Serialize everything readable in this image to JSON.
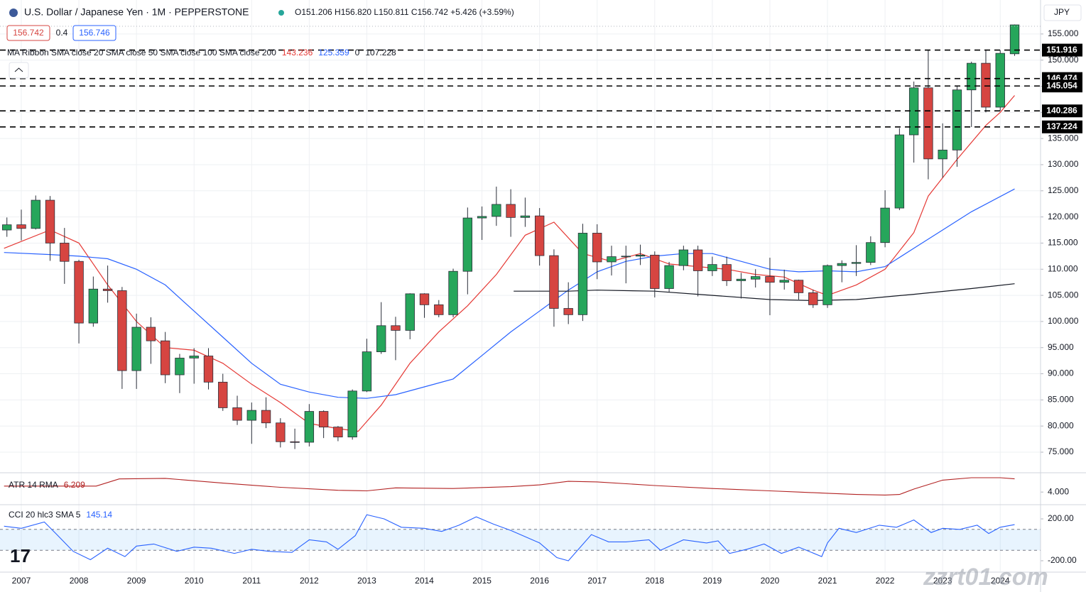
{
  "header": {
    "symbol": "U.S. Dollar / Japanese Yen · 1M · PEPPERSTONE",
    "ohlc": "O151.206 H156.820 L150.811 C156.742 +5.426 (+3.59%)",
    "bid": "156.742",
    "spread": "0.4",
    "ask": "156.746",
    "currency": "JPY",
    "watermark": "zzrt01.com"
  },
  "chart_data": [
    {
      "type": "candlestick",
      "legend": "MA Ribbon SMA close 20 SMA close 50 SMA close 100 SMA close 200",
      "legend_values": [
        {
          "text": "143.236",
          "color": "#e53935"
        },
        {
          "text": "125.359",
          "color": "#2962ff"
        },
        {
          "text": "0",
          "color": "#131722"
        },
        {
          "text": "107.228",
          "color": "#131722"
        }
      ],
      "up_color": "#26a65b",
      "down_color": "#d64541",
      "xlim": [
        2006.63,
        2024.7
      ],
      "ylim": [
        71.2,
        161.5
      ],
      "xticks": [
        2007,
        2008,
        2009,
        2010,
        2011,
        2012,
        2013,
        2014,
        2015,
        2016,
        2017,
        2018,
        2019,
        2020,
        2021,
        2022,
        2023,
        2024
      ],
      "yticks": [
        {
          "value": 75,
          "label": "75.000"
        },
        {
          "value": 80,
          "label": "80.000"
        },
        {
          "value": 85,
          "label": "85.000"
        },
        {
          "value": 90,
          "label": "90.000"
        },
        {
          "value": 95,
          "label": "95.000"
        },
        {
          "value": 100,
          "label": "100.000"
        },
        {
          "value": 105,
          "label": "105.000"
        },
        {
          "value": 110,
          "label": "110.000"
        },
        {
          "value": 115,
          "label": "115.000"
        },
        {
          "value": 120,
          "label": "120.000"
        },
        {
          "value": 125,
          "label": "125.000"
        },
        {
          "value": 130,
          "label": "130.000"
        },
        {
          "value": 135,
          "label": "135.000"
        },
        {
          "value": 140,
          "label": "140.000"
        },
        {
          "value": 145,
          "label": "145.000"
        },
        {
          "value": 150,
          "label": "150.000"
        },
        {
          "value": 155,
          "label": "155.000"
        }
      ],
      "grid": true,
      "x": [
        2006.75,
        2007.0,
        2007.25,
        2007.5,
        2007.75,
        2008.0,
        2008.25,
        2008.5,
        2008.75,
        2009.0,
        2009.25,
        2009.5,
        2009.75,
        2010.0,
        2010.25,
        2010.5,
        2010.75,
        2011.0,
        2011.25,
        2011.5,
        2011.75,
        2012.0,
        2012.25,
        2012.5,
        2012.75,
        2013.0,
        2013.25,
        2013.5,
        2013.75,
        2014.0,
        2014.25,
        2014.5,
        2014.75,
        2015.0,
        2015.25,
        2015.5,
        2015.75,
        2016.0,
        2016.25,
        2016.5,
        2016.75,
        2017.0,
        2017.25,
        2017.5,
        2017.75,
        2018.0,
        2018.25,
        2018.5,
        2018.75,
        2019.0,
        2019.25,
        2019.5,
        2019.75,
        2020.0,
        2020.25,
        2020.5,
        2020.75,
        2021.0,
        2021.25,
        2021.5,
        2021.75,
        2022.0,
        2022.25,
        2022.5,
        2022.75,
        2023.0,
        2023.25,
        2023.5,
        2023.75,
        2024.0,
        2024.25
      ],
      "open": [
        117.5,
        118.5,
        117.8,
        123.2,
        115.0,
        111.5,
        99.7,
        106.2,
        105.9,
        90.6,
        98.9,
        96.3,
        89.8,
        93.0,
        93.4,
        88.4,
        83.5,
        81.1,
        83.0,
        80.6,
        77.0,
        76.9,
        82.8,
        79.8,
        77.9,
        86.7,
        94.2,
        99.2,
        98.3,
        105.3,
        103.2,
        101.3,
        109.6,
        119.8,
        120.1,
        122.4,
        119.9,
        120.2,
        112.6,
        102.5,
        101.3,
        116.9,
        111.4,
        112.4,
        112.5,
        112.7,
        106.3,
        110.7,
        113.7,
        109.7,
        110.9,
        107.8,
        108.1,
        108.6,
        107.5,
        107.9,
        105.5,
        103.2,
        110.7,
        111.1,
        111.3,
        115.1,
        121.7,
        135.7,
        144.7,
        131.1,
        132.8,
        144.3,
        149.4,
        141.0,
        151.206
      ],
      "high": [
        119.9,
        121.4,
        124.1,
        124.0,
        117.9,
        111.8,
        108.6,
        110.7,
        106.6,
        101.5,
        100.8,
        98.0,
        93.8,
        94.9,
        94.9,
        90.0,
        85.8,
        84.5,
        85.5,
        81.5,
        79.5,
        84.2,
        83.0,
        80.0,
        87.0,
        96.7,
        103.7,
        100.9,
        105.4,
        105.4,
        104.1,
        110.1,
        121.8,
        122.0,
        125.8,
        125.3,
        123.7,
        121.7,
        113.8,
        107.5,
        118.7,
        118.6,
        114.5,
        114.5,
        114.7,
        113.4,
        111.4,
        114.5,
        114.5,
        112.4,
        112.4,
        109.3,
        110.0,
        112.2,
        109.9,
        108.0,
        106.1,
        110.9,
        111.7,
        114.6,
        116.3,
        125.1,
        137.0,
        145.9,
        151.9,
        137.9,
        145.1,
        149.7,
        151.9,
        151.9,
        156.82
      ],
      "low": [
        116.2,
        115.5,
        117.6,
        111.6,
        107.2,
        95.8,
        99.0,
        103.6,
        87.1,
        87.1,
        91.9,
        88.2,
        86.3,
        88.1,
        87.0,
        82.9,
        80.2,
        76.6,
        79.6,
        75.9,
        75.6,
        76.1,
        77.7,
        77.1,
        77.4,
        86.5,
        93.8,
        92.6,
        96.6,
        100.7,
        100.8,
        100.8,
        105.2,
        115.6,
        118.3,
        116.2,
        118.1,
        110.7,
        99.0,
        99.5,
        100.1,
        108.1,
        108.8,
        107.3,
        110.8,
        104.6,
        105.6,
        109.8,
        104.8,
        108.7,
        106.8,
        104.4,
        106.5,
        101.2,
        106.1,
        104.2,
        102.6,
        102.6,
        107.5,
        108.7,
        110.8,
        114.2,
        121.3,
        130.4,
        127.2,
        127.5,
        129.6,
        137.2,
        140.0,
        140.3,
        150.811
      ],
      "close": [
        118.5,
        117.8,
        123.2,
        115.0,
        111.5,
        99.7,
        106.2,
        105.9,
        90.6,
        98.9,
        96.3,
        89.8,
        93.0,
        93.4,
        88.4,
        83.5,
        81.1,
        83.0,
        80.6,
        77.0,
        76.9,
        82.8,
        79.8,
        77.9,
        86.7,
        94.2,
        99.2,
        98.3,
        105.3,
        103.2,
        101.3,
        109.6,
        119.8,
        120.1,
        122.4,
        119.9,
        120.2,
        112.6,
        102.5,
        101.3,
        116.9,
        111.4,
        112.4,
        112.5,
        112.7,
        106.3,
        110.7,
        113.7,
        109.7,
        110.9,
        107.8,
        108.1,
        108.6,
        107.5,
        107.9,
        105.5,
        103.2,
        110.7,
        111.1,
        111.3,
        115.1,
        121.7,
        135.7,
        144.7,
        131.1,
        132.8,
        144.3,
        149.4,
        141.0,
        151.3,
        156.742
      ],
      "lines": [
        {
          "color": "#e53935",
          "x": [
            2006.7,
            2007.5,
            2008.0,
            2008.5,
            2009.0,
            2009.5,
            2010.0,
            2010.5,
            2011.0,
            2011.5,
            2012.0,
            2012.5,
            2012.85,
            2013.25,
            2013.75,
            2014.25,
            2014.75,
            2015.25,
            2015.75,
            2016.25,
            2016.75,
            2017.25,
            2017.75,
            2018.25,
            2018.75,
            2019.25,
            2019.75,
            2020.25,
            2020.75,
            2021.0,
            2021.5,
            2022.0,
            2022.5,
            2022.75,
            2023.25,
            2023.75,
            2024.0,
            2024.25
          ],
          "values": [
            114,
            117.5,
            115,
            107,
            100,
            95,
            94.5,
            92,
            88,
            84.5,
            80.5,
            79.5,
            79,
            84,
            92,
            98,
            103,
            109,
            116.5,
            119,
            113,
            111.5,
            113,
            111,
            110.5,
            110,
            109,
            108.5,
            106,
            105,
            107,
            110,
            117,
            124,
            131,
            137.5,
            140,
            143.236
          ]
        },
        {
          "color": "#2962ff",
          "x": [
            2006.7,
            2007.5,
            2008.0,
            2008.5,
            2009.0,
            2009.5,
            2010.0,
            2010.5,
            2011.0,
            2011.5,
            2012.0,
            2012.5,
            2013.0,
            2013.5,
            2014.0,
            2014.5,
            2015.0,
            2015.5,
            2016.0,
            2016.5,
            2017.0,
            2017.5,
            2018.0,
            2018.5,
            2019.0,
            2019.5,
            2020.0,
            2020.5,
            2021.0,
            2021.5,
            2022.0,
            2022.5,
            2023.0,
            2023.5,
            2024.25
          ],
          "values": [
            113.2,
            112.8,
            112.5,
            112,
            110,
            107,
            102,
            97,
            92,
            88,
            86.5,
            85.5,
            85.3,
            86,
            87.5,
            89,
            93.5,
            98,
            102,
            106,
            109.5,
            111.5,
            112.5,
            113,
            113,
            111.5,
            110,
            109.5,
            109.7,
            109.5,
            110.5,
            114,
            117.5,
            121,
            125.359
          ]
        },
        {
          "color": "#131722",
          "x": [
            2015.55,
            2016.5,
            2017.0,
            2018.0,
            2019.0,
            2020.0,
            2020.75,
            2021.5,
            2022.5,
            2023.5,
            2024.25
          ],
          "values": [
            105.8,
            105.8,
            106,
            105.8,
            105,
            104.2,
            104,
            104.2,
            105.2,
            106.3,
            107.228
          ]
        }
      ],
      "levels": [
        {
          "value": 151.916,
          "label": "151.916"
        },
        {
          "value": 146.474,
          "label": "146.474"
        },
        {
          "value": 145.054,
          "label": "145.054"
        },
        {
          "value": 140.286,
          "label": "140.286"
        },
        {
          "value": 137.224,
          "label": "137.224"
        }
      ]
    },
    {
      "type": "line",
      "title": "ATR 14 RMA",
      "value_label": "6.209",
      "color": "#b22222",
      "xlim": [
        2006.63,
        2024.7
      ],
      "ylim": [
        2.0,
        7.0
      ],
      "yticks": [
        {
          "value": 4,
          "label": "4.000"
        }
      ],
      "x": [
        2006.7,
        2008.3,
        2008.7,
        2009.5,
        2010.5,
        2011.5,
        2012.5,
        2013.0,
        2013.5,
        2014.5,
        2015.5,
        2016.0,
        2016.5,
        2017.0,
        2018.0,
        2019.0,
        2019.5,
        2020.0,
        2020.5,
        2021.0,
        2021.5,
        2022.0,
        2022.25,
        2022.5,
        2023.0,
        2023.5,
        2024.0,
        2024.25
      ],
      "values": [
        5.0,
        5.0,
        6.2,
        6.3,
        5.5,
        4.8,
        4.3,
        4.2,
        4.7,
        4.6,
        4.9,
        5.2,
        5.8,
        5.7,
        5.1,
        4.6,
        4.4,
        4.2,
        4.0,
        3.8,
        3.6,
        3.5,
        3.6,
        4.5,
        6.0,
        6.4,
        6.4,
        6.209
      ]
    },
    {
      "type": "line",
      "title": "CCI 20 hlc3 SMA 5",
      "value_label": "145.14",
      "color": "#2962ff",
      "xlim": [
        2006.63,
        2024.7
      ],
      "ylim": [
        -302,
        329
      ],
      "yticks": [
        {
          "value": 200,
          "label": "200.00"
        },
        {
          "value": -200,
          "label": "-200.00"
        }
      ],
      "band": [
        -100,
        100
      ],
      "x": [
        2006.7,
        2007.0,
        2007.4,
        2007.6,
        2007.9,
        2008.2,
        2008.5,
        2008.8,
        2009.0,
        2009.3,
        2009.7,
        2010.0,
        2010.3,
        2010.7,
        2011.0,
        2011.3,
        2011.7,
        2012.0,
        2012.3,
        2012.5,
        2012.8,
        2013.0,
        2013.3,
        2013.6,
        2014.0,
        2014.3,
        2014.6,
        2014.9,
        2015.2,
        2015.5,
        2016.0,
        2016.3,
        2016.5,
        2016.9,
        2017.2,
        2017.5,
        2017.9,
        2018.1,
        2018.5,
        2018.9,
        2019.1,
        2019.3,
        2019.6,
        2019.9,
        2020.2,
        2020.5,
        2020.9,
        2021.0,
        2021.2,
        2021.5,
        2021.9,
        2022.2,
        2022.5,
        2022.8,
        2023.0,
        2023.3,
        2023.6,
        2023.8,
        2024.0,
        2024.25
      ],
      "values": [
        130,
        110,
        170,
        60,
        -110,
        -190,
        -80,
        -160,
        -60,
        -40,
        -110,
        -70,
        -80,
        -130,
        -90,
        -110,
        -120,
        0,
        -20,
        -90,
        40,
        240,
        200,
        120,
        110,
        80,
        140,
        220,
        150,
        90,
        -30,
        -170,
        -200,
        50,
        -20,
        -20,
        0,
        -100,
        0,
        -30,
        -10,
        -130,
        -90,
        -40,
        -130,
        -70,
        -160,
        -30,
        110,
        70,
        140,
        120,
        190,
        70,
        110,
        100,
        140,
        60,
        120,
        145.14
      ]
    }
  ]
}
